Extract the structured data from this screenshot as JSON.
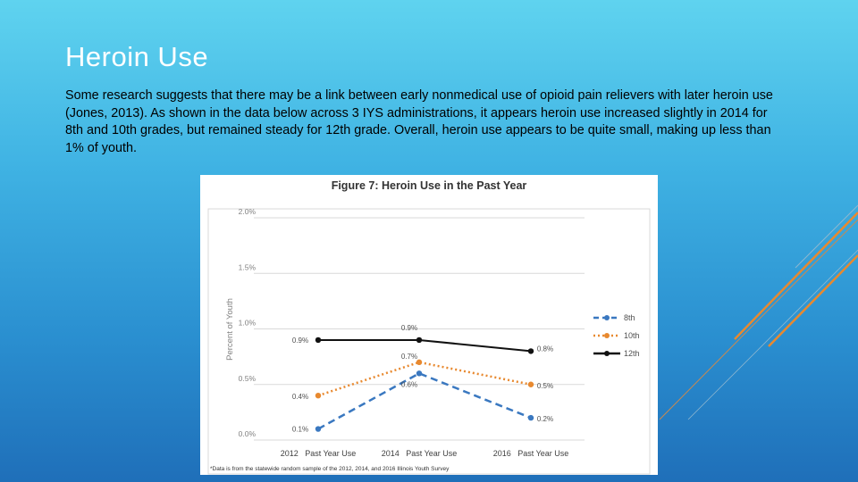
{
  "slide": {
    "title": "Heroin Use",
    "body": "Some research suggests that there may be a link between early nonmedical use of opioid pain relievers with later heroin use (Jones, 2013). As shown in the data below across 3 IYS administrations, it appears heroin use increased slightly in 2014 for 8th and 10th grades, but remained steady for 12th grade. Overall, heroin use appears to be quite small, making up less than 1% of youth."
  },
  "colors": {
    "accent_orange": "#e8892f",
    "accent_line": "#c98a50",
    "grid": "#d9d9d9"
  },
  "chart_data": {
    "type": "line",
    "title": "Figure 7: Heroin Use in the Past Year",
    "xlabel": "",
    "ylabel": "Percent of Youth",
    "categories": [
      "2012   Past Year Use",
      "2014   Past Year Use",
      "2016   Past Year Use"
    ],
    "ylim": [
      0,
      2.0
    ],
    "yticks": [
      0,
      0.5,
      1.0,
      1.5,
      2.0
    ],
    "ytick_labels": [
      "0.0%",
      "0.5%",
      "1.0%",
      "1.5%",
      "2.0%"
    ],
    "grid": true,
    "legend_position": "right",
    "series": [
      {
        "name": "8th",
        "values": [
          0.1,
          0.6,
          0.2
        ],
        "labels": [
          "0.1%",
          "0.6%",
          "0.2%"
        ],
        "color": "#3a78c0",
        "dash": "8,5"
      },
      {
        "name": "10th",
        "values": [
          0.4,
          0.7,
          0.5
        ],
        "labels": [
          "0.4%",
          "0.7%",
          "0.5%"
        ],
        "color": "#e8892f",
        "dash": "2,3"
      },
      {
        "name": "12th",
        "values": [
          0.9,
          0.9,
          0.8
        ],
        "labels": [
          "0.9%",
          "0.9%",
          "0.8%"
        ],
        "color": "#111111",
        "dash": ""
      }
    ],
    "footnote": "*Data is from the statewide random sample of the 2012, 2014, and 2016 Illinois Youth Survey"
  }
}
